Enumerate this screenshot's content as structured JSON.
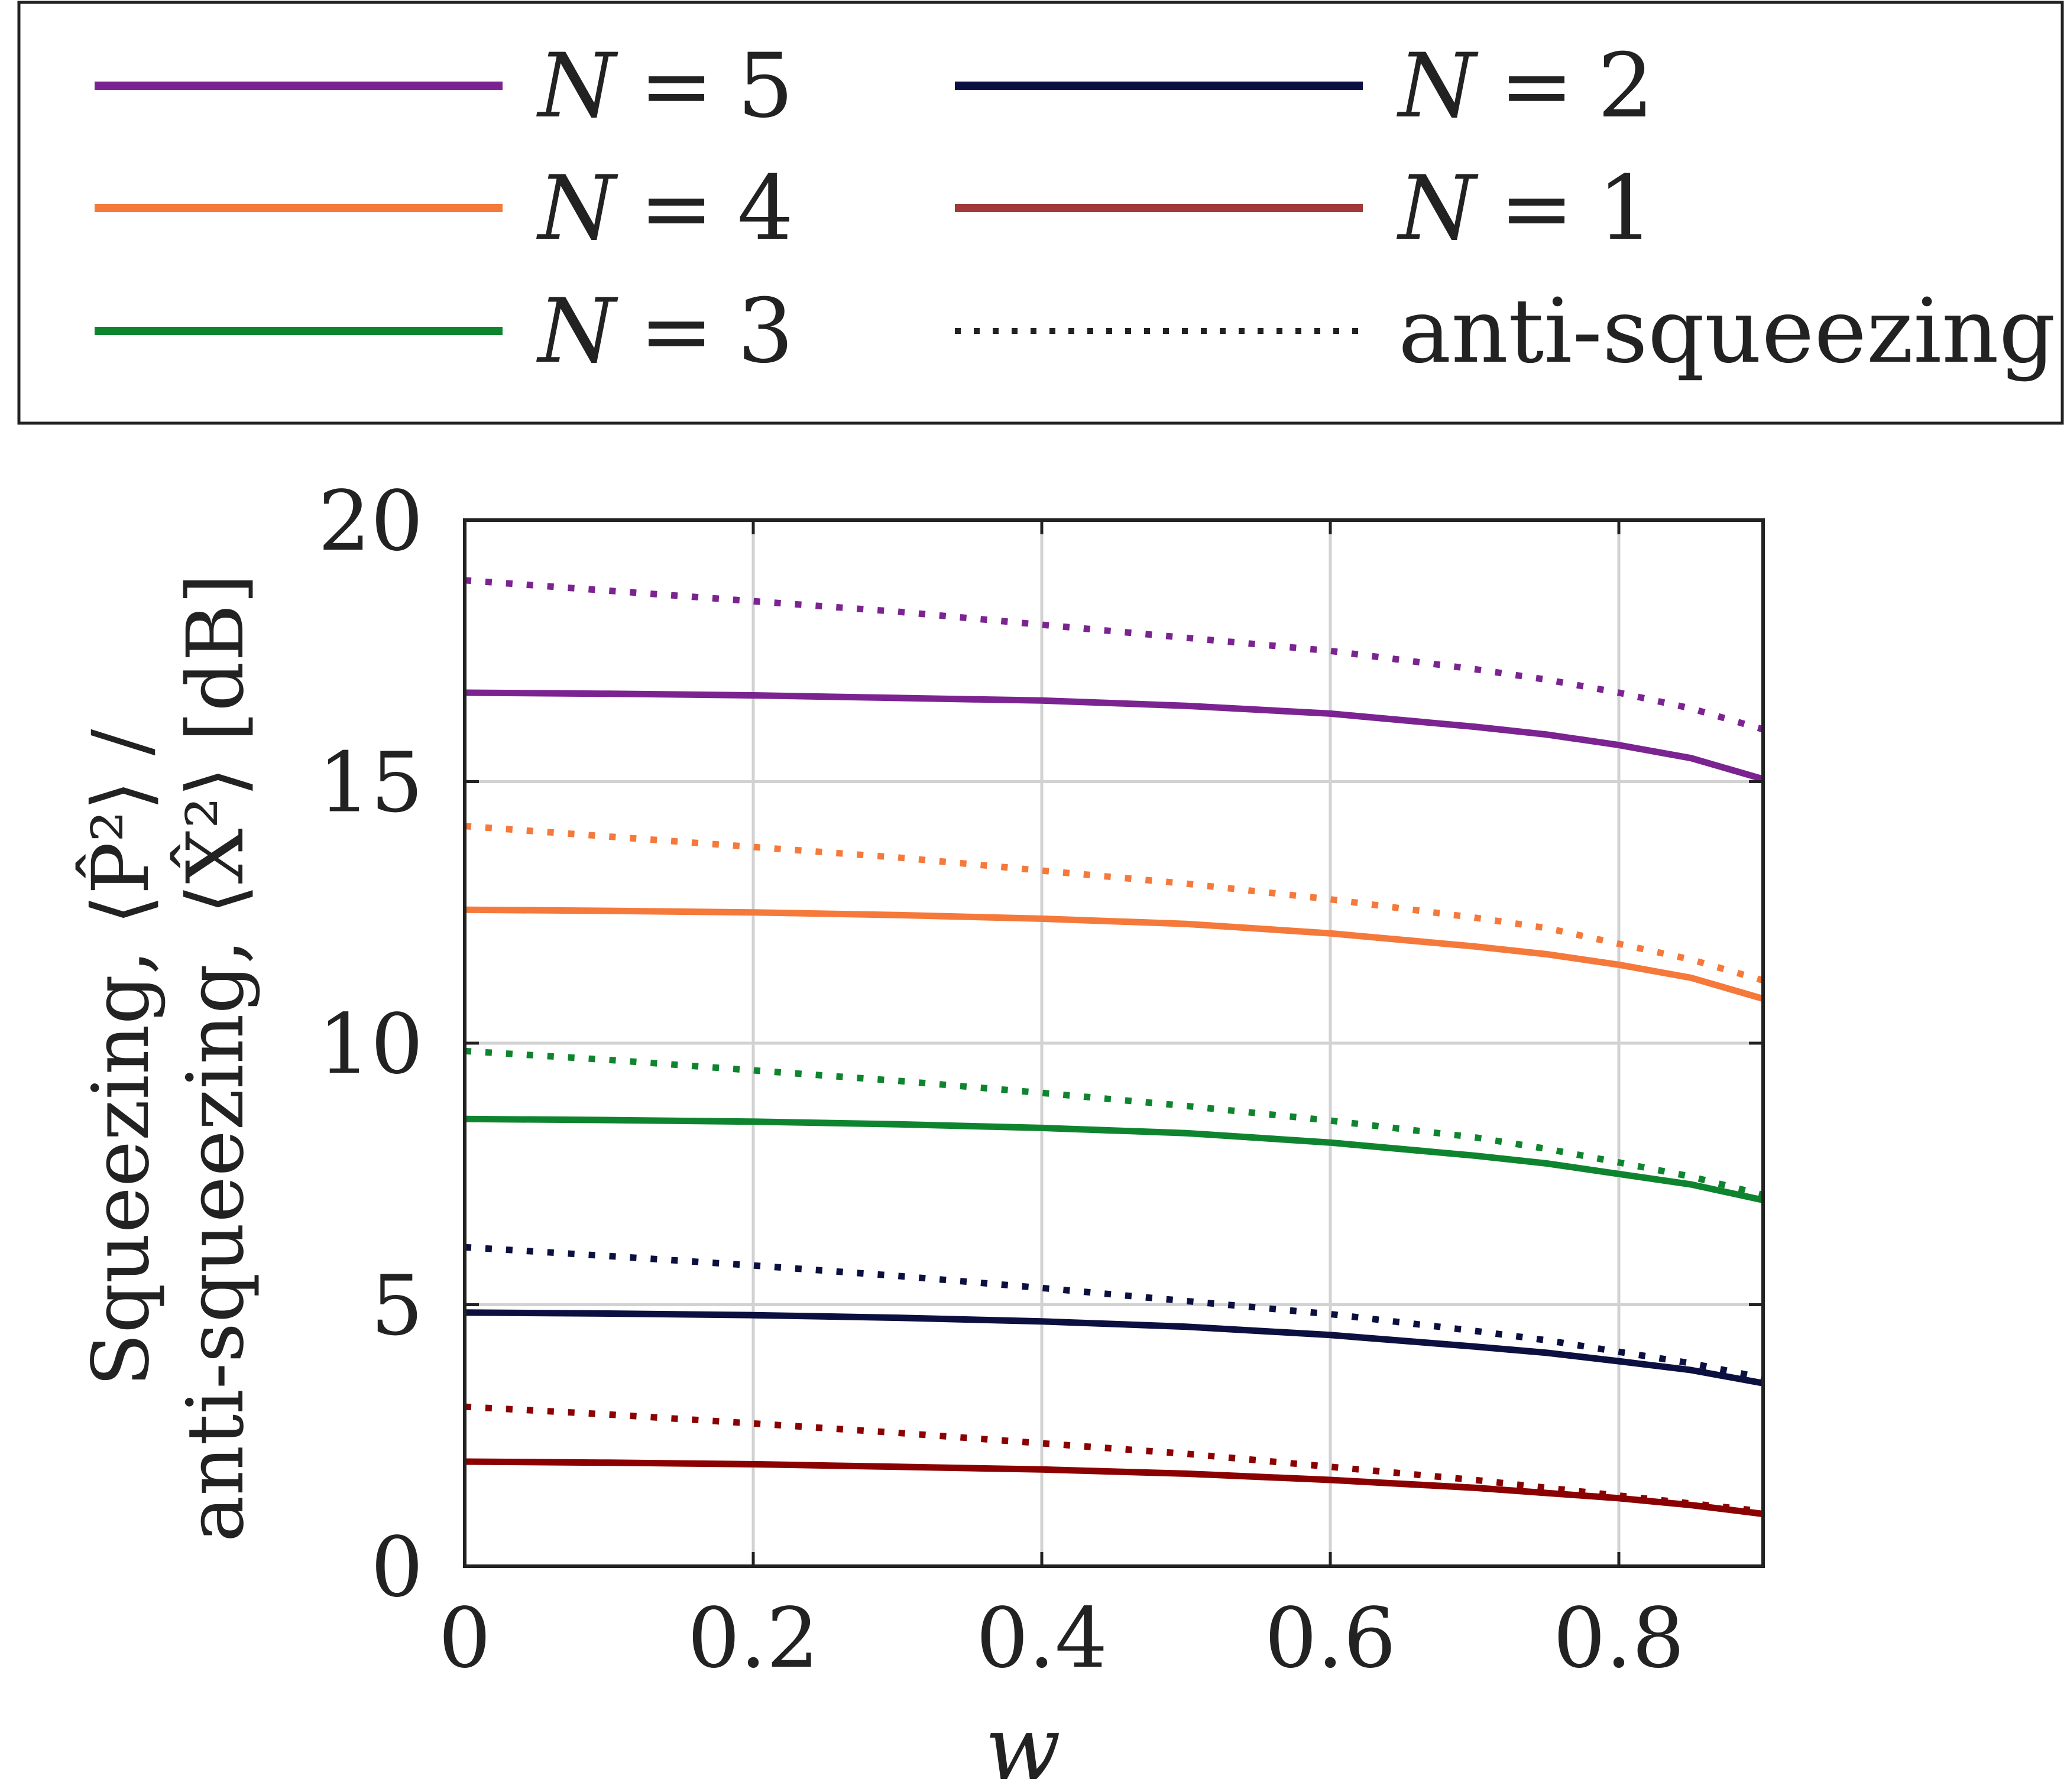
{
  "chart_data": {
    "type": "line",
    "title": "",
    "xlabel": "w",
    "ylabel_lines": [
      "Squeezing, ⟨P̂²⟩ /",
      "anti-squeezing, ⟨X̂²⟩ [dB]"
    ],
    "xlim": [
      0,
      0.9
    ],
    "ylim": [
      0,
      20
    ],
    "xticks": [
      0,
      0.2,
      0.4,
      0.6,
      0.8
    ],
    "yticks": [
      0,
      5,
      10,
      15,
      20
    ],
    "xtick_labels": [
      "0",
      "0.2",
      "0.4",
      "0.6",
      "0.8"
    ],
    "ytick_labels": [
      "0",
      "5",
      "10",
      "15",
      "20"
    ],
    "grid": true,
    "legend_position": "top",
    "x": [
      0,
      0.1,
      0.2,
      0.3,
      0.4,
      0.5,
      0.6,
      0.7,
      0.75,
      0.8,
      0.85,
      0.9
    ],
    "series": [
      {
        "name": "N = 5",
        "label_var": "N",
        "label_val": "5",
        "color": "#7B2391",
        "style": "solid",
        "values": [
          16.7,
          16.68,
          16.65,
          16.6,
          16.55,
          16.45,
          16.3,
          16.05,
          15.9,
          15.7,
          15.45,
          15.05
        ]
      },
      {
        "name": "N = 5 anti-squeezing",
        "color": "#7B2391",
        "style": "dotted",
        "values": [
          18.85,
          18.65,
          18.45,
          18.25,
          18.0,
          17.75,
          17.5,
          17.15,
          16.95,
          16.7,
          16.4,
          16.0
        ]
      },
      {
        "name": "N = 4",
        "label_var": "N",
        "label_val": "4",
        "color": "#F5793A",
        "style": "solid",
        "values": [
          12.55,
          12.53,
          12.5,
          12.45,
          12.38,
          12.28,
          12.1,
          11.85,
          11.7,
          11.5,
          11.25,
          10.85
        ]
      },
      {
        "name": "N = 4 anti-squeezing",
        "color": "#F5793A",
        "style": "dotted",
        "values": [
          14.15,
          13.95,
          13.75,
          13.55,
          13.3,
          13.05,
          12.75,
          12.4,
          12.2,
          11.9,
          11.6,
          11.2
        ]
      },
      {
        "name": "N = 3",
        "label_var": "N",
        "label_val": "3",
        "color": "#0F842F",
        "style": "solid",
        "values": [
          8.55,
          8.53,
          8.5,
          8.45,
          8.38,
          8.28,
          8.1,
          7.85,
          7.7,
          7.5,
          7.3,
          7.0
        ]
      },
      {
        "name": "N = 3 anti-squeezing",
        "color": "#0F842F",
        "style": "dotted",
        "values": [
          9.85,
          9.68,
          9.48,
          9.28,
          9.05,
          8.8,
          8.52,
          8.2,
          7.98,
          7.72,
          7.45,
          7.1
        ]
      },
      {
        "name": "N = 2",
        "label_var": "N",
        "label_val": "2",
        "color": "#0B1040",
        "style": "solid",
        "values": [
          4.85,
          4.83,
          4.8,
          4.75,
          4.68,
          4.58,
          4.42,
          4.2,
          4.08,
          3.92,
          3.75,
          3.5
        ]
      },
      {
        "name": "N = 2 anti-squeezing",
        "color": "#0B1040",
        "style": "dotted",
        "values": [
          6.1,
          5.93,
          5.75,
          5.55,
          5.32,
          5.07,
          4.82,
          4.5,
          4.32,
          4.1,
          3.88,
          3.6
        ]
      },
      {
        "name": "N = 1",
        "label_var": "N",
        "label_val": "1",
        "color": "#A03A3A",
        "line_color": "#8B0000",
        "style": "solid",
        "values": [
          2.0,
          1.98,
          1.95,
          1.9,
          1.85,
          1.77,
          1.65,
          1.5,
          1.4,
          1.3,
          1.17,
          1.0
        ]
      },
      {
        "name": "N = 1 anti-squeezing",
        "color": "#8B0000",
        "style": "dotted",
        "values": [
          3.05,
          2.9,
          2.73,
          2.55,
          2.35,
          2.15,
          1.9,
          1.65,
          1.5,
          1.35,
          1.2,
          1.05
        ]
      }
    ],
    "legend": [
      {
        "series": "N = 5",
        "var": "N",
        "eq": "=",
        "val": "5"
      },
      {
        "series": "N = 4",
        "var": "N",
        "eq": "=",
        "val": "4"
      },
      {
        "series": "N = 3",
        "var": "N",
        "eq": "=",
        "val": "3"
      },
      {
        "series": "N = 2",
        "var": "N",
        "eq": "=",
        "val": "2"
      },
      {
        "series": "N = 1",
        "var": "N",
        "eq": "=",
        "val": "1"
      },
      {
        "series": "anti-squeezing",
        "text": "anti-squeezing"
      }
    ]
  }
}
